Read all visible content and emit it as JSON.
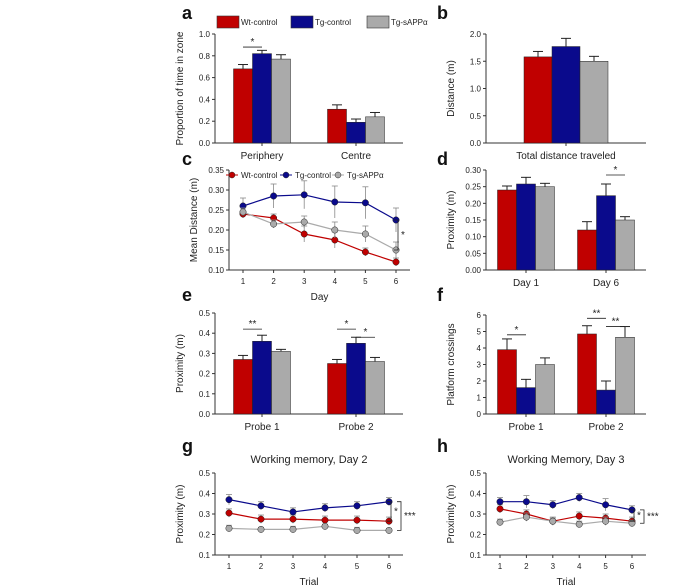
{
  "colors": {
    "wt": "#c00000",
    "tg": "#0a0a8c",
    "sapp": "#aaaaaa",
    "axis": "#333333"
  },
  "legend_main": [
    "Wt-control",
    "Tg-control",
    "Tg-sAPPα"
  ],
  "chart_data": [
    {
      "id": "a",
      "letter": "a",
      "type": "bar",
      "title": "",
      "ylabel": "Proportion of time in zone",
      "xlabel": "",
      "categories": [
        "Periphery",
        "Centre"
      ],
      "ylim": [
        0,
        1.0
      ],
      "yticks": [
        "0.0",
        "0.2",
        "0.4",
        "0.6",
        "0.8",
        "1.0"
      ],
      "series": [
        {
          "name": "Wt-control",
          "values": [
            0.68,
            0.31
          ],
          "errors": [
            0.04,
            0.04
          ]
        },
        {
          "name": "Tg-control",
          "values": [
            0.82,
            0.19
          ],
          "errors": [
            0.03,
            0.03
          ]
        },
        {
          "name": "Tg-sAPPα",
          "values": [
            0.77,
            0.24
          ],
          "errors": [
            0.04,
            0.04
          ]
        }
      ],
      "sig": [
        {
          "label": "*",
          "cat": 0,
          "from": 0,
          "to": 1,
          "y": 0.88
        }
      ]
    },
    {
      "id": "b",
      "letter": "b",
      "type": "bar",
      "title": "",
      "ylabel": "Distance (m)",
      "xlabel": "",
      "categories": [
        "Total distance traveled"
      ],
      "ylim": [
        0,
        2.0
      ],
      "yticks": [
        "0.0",
        "0.5",
        "1.0",
        "1.5",
        "2.0"
      ],
      "series": [
        {
          "name": "Wt-control",
          "values": [
            1.58
          ],
          "errors": [
            0.1
          ]
        },
        {
          "name": "Tg-control",
          "values": [
            1.77
          ],
          "errors": [
            0.15
          ]
        },
        {
          "name": "Tg-sAPPα",
          "values": [
            1.5
          ],
          "errors": [
            0.09
          ]
        }
      ],
      "sig": []
    },
    {
      "id": "c",
      "letter": "c",
      "type": "line",
      "title": "",
      "ylabel": "Mean Distance (m)",
      "xlabel": "Day",
      "x": [
        1,
        2,
        3,
        4,
        5,
        6
      ],
      "ylim": [
        0.1,
        0.35
      ],
      "yticks": [
        "0.10",
        "0.15",
        "0.20",
        "0.25",
        "0.30",
        "0.35"
      ],
      "series": [
        {
          "name": "Wt-control",
          "values": [
            0.24,
            0.23,
            0.19,
            0.175,
            0.145,
            0.12
          ],
          "errors": [
            0.01,
            0.01,
            0.02,
            0.02,
            0.01,
            0.01
          ]
        },
        {
          "name": "Tg-control",
          "values": [
            0.26,
            0.285,
            0.288,
            0.27,
            0.268,
            0.225
          ],
          "errors": [
            0.02,
            0.03,
            0.035,
            0.04,
            0.04,
            0.03
          ]
        },
        {
          "name": "Tg-sAPPα",
          "values": [
            0.245,
            0.215,
            0.22,
            0.2,
            0.19,
            0.15
          ],
          "errors": [
            0.01,
            0.01,
            0.015,
            0.02,
            0.02,
            0.02
          ]
        }
      ],
      "bracket": [
        {
          "label": "*",
          "y1": 0.225,
          "y2": 0.15
        }
      ]
    },
    {
      "id": "d",
      "letter": "d",
      "type": "bar",
      "title": "",
      "ylabel": "Proximity (m)",
      "xlabel": "",
      "categories": [
        "Day 1",
        "Day 6"
      ],
      "ylim": [
        0,
        0.3
      ],
      "yticks": [
        "0.00",
        "0.05",
        "0.10",
        "0.15",
        "0.20",
        "0.25",
        "0.30"
      ],
      "series": [
        {
          "name": "Wt-control",
          "values": [
            0.24,
            0.12
          ],
          "errors": [
            0.012,
            0.025
          ]
        },
        {
          "name": "Tg-control",
          "values": [
            0.258,
            0.223
          ],
          "errors": [
            0.02,
            0.035
          ]
        },
        {
          "name": "Tg-sAPPα",
          "values": [
            0.25,
            0.15
          ],
          "errors": [
            0.01,
            0.01
          ]
        }
      ],
      "sig": [
        {
          "label": "*",
          "cat": 1,
          "from": 1,
          "to": 2,
          "y": 0.285
        }
      ]
    },
    {
      "id": "e",
      "letter": "e",
      "type": "bar",
      "title": "",
      "ylabel": "Proximity (m)",
      "xlabel": "",
      "categories": [
        "Probe 1",
        "Probe 2"
      ],
      "ylim": [
        0,
        0.5
      ],
      "yticks": [
        "0.0",
        "0.1",
        "0.2",
        "0.3",
        "0.4",
        "0.5"
      ],
      "series": [
        {
          "name": "Wt-control",
          "values": [
            0.27,
            0.25
          ],
          "errors": [
            0.02,
            0.02
          ]
        },
        {
          "name": "Tg-control",
          "values": [
            0.36,
            0.35
          ],
          "errors": [
            0.03,
            0.03
          ]
        },
        {
          "name": "Tg-sAPPα",
          "values": [
            0.31,
            0.26
          ],
          "errors": [
            0.01,
            0.02
          ]
        }
      ],
      "sig": [
        {
          "label": "**",
          "cat": 0,
          "from": 0,
          "to": 1,
          "y": 0.42
        },
        {
          "label": "*",
          "cat": 1,
          "from": 0,
          "to": 1,
          "y": 0.42
        },
        {
          "label": "*",
          "cat": 1,
          "from": 1,
          "to": 2,
          "y": 0.38
        }
      ]
    },
    {
      "id": "f",
      "letter": "f",
      "type": "bar",
      "title": "",
      "ylabel": "Platform crossings",
      "xlabel": "",
      "categories": [
        "Probe 1",
        "Probe 2"
      ],
      "ylim": [
        0,
        6
      ],
      "yticks": [
        "0",
        "1",
        "2",
        "3",
        "4",
        "5",
        "6"
      ],
      "series": [
        {
          "name": "Wt-control",
          "values": [
            3.9,
            4.85
          ],
          "errors": [
            0.65,
            0.5
          ]
        },
        {
          "name": "Tg-control",
          "values": [
            1.6,
            1.45
          ],
          "errors": [
            0.5,
            0.55
          ]
        },
        {
          "name": "Tg-sAPPα",
          "values": [
            3.0,
            4.65
          ],
          "errors": [
            0.4,
            0.65
          ]
        }
      ],
      "sig": [
        {
          "label": "*",
          "cat": 0,
          "from": 0,
          "to": 1,
          "y": 4.8
        },
        {
          "label": "**",
          "cat": 1,
          "from": 0,
          "to": 1,
          "y": 5.8
        },
        {
          "label": "**",
          "cat": 1,
          "from": 1,
          "to": 2,
          "y": 5.3
        }
      ]
    },
    {
      "id": "g",
      "letter": "g",
      "type": "line",
      "title": "Working memory, Day 2",
      "ylabel": "Proximity (m)",
      "xlabel": "Trial",
      "x": [
        1,
        2,
        3,
        4,
        5,
        6
      ],
      "ylim": [
        0.1,
        0.5
      ],
      "yticks": [
        "0.1",
        "0.2",
        "0.3",
        "0.4",
        "0.5"
      ],
      "series": [
        {
          "name": "Wt-control",
          "values": [
            0.305,
            0.275,
            0.275,
            0.27,
            0.27,
            0.265
          ],
          "errors": [
            0.02,
            0.02,
            0.02,
            0.02,
            0.02,
            0.02
          ]
        },
        {
          "name": "Tg-control",
          "values": [
            0.37,
            0.34,
            0.31,
            0.33,
            0.34,
            0.36
          ],
          "errors": [
            0.025,
            0.02,
            0.02,
            0.02,
            0.02,
            0.02
          ]
        },
        {
          "name": "Tg-sAPPα",
          "values": [
            0.23,
            0.225,
            0.225,
            0.24,
            0.22,
            0.22
          ],
          "errors": [
            0.015,
            0.01,
            0.015,
            0.01,
            0.015,
            0.01
          ]
        }
      ],
      "bracket": [
        {
          "label": "*",
          "y1": 0.36,
          "y2": 0.265
        },
        {
          "label": "***",
          "y1": 0.36,
          "y2": 0.22
        }
      ]
    },
    {
      "id": "h",
      "letter": "h",
      "type": "line",
      "title": "Working Memory, Day 3",
      "ylabel": "Proximity (m)",
      "xlabel": "Trial",
      "x": [
        1,
        2,
        3,
        4,
        5,
        6
      ],
      "ylim": [
        0.1,
        0.5
      ],
      "yticks": [
        "0.1",
        "0.2",
        "0.3",
        "0.4",
        "0.5"
      ],
      "series": [
        {
          "name": "Wt-control",
          "values": [
            0.325,
            0.3,
            0.265,
            0.29,
            0.28,
            0.265
          ],
          "errors": [
            0.02,
            0.02,
            0.02,
            0.02,
            0.02,
            0.02
          ]
        },
        {
          "name": "Tg-control",
          "values": [
            0.36,
            0.36,
            0.345,
            0.38,
            0.345,
            0.32
          ],
          "errors": [
            0.02,
            0.03,
            0.02,
            0.02,
            0.03,
            0.02
          ]
        },
        {
          "name": "Tg-sAPPα",
          "values": [
            0.26,
            0.285,
            0.265,
            0.25,
            0.265,
            0.255
          ],
          "errors": [
            0.015,
            0.02,
            0.015,
            0.015,
            0.02,
            0.015
          ]
        }
      ],
      "bracket": [
        {
          "label": "*",
          "y1": 0.32,
          "y2": 0.265
        },
        {
          "label": "***",
          "y1": 0.32,
          "y2": 0.255
        }
      ]
    }
  ]
}
